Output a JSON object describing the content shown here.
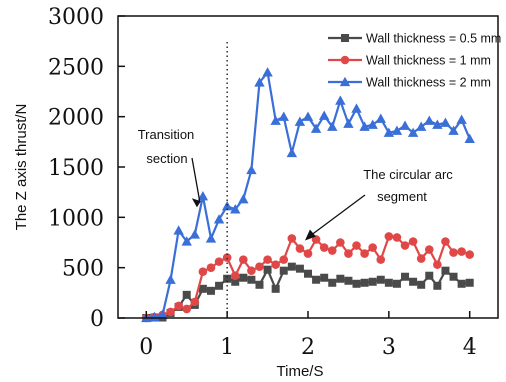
{
  "chart_data": {
    "type": "line",
    "xlabel": "Time/S",
    "ylabel": "The Z axis thrust/N",
    "xlim": [
      -0.35,
      4.35
    ],
    "ylim": [
      0,
      3000
    ],
    "x_ticks": [
      "0",
      "1",
      "2",
      "3",
      "4"
    ],
    "y_ticks": [
      "0",
      "500",
      "1000",
      "1500",
      "2000",
      "2500",
      "3000"
    ],
    "x_tick_values": [
      0,
      1,
      2,
      3,
      4
    ],
    "y_tick_values": [
      0,
      500,
      1000,
      1500,
      2000,
      2500,
      3000
    ],
    "vline_x": 1.0,
    "legend_position": "top-right",
    "annotations": [
      {
        "text_lines": [
          "Transition",
          "section"
        ],
        "points_to": [
          0.7,
          1180
        ]
      },
      {
        "text_lines": [
          "The circular arc",
          "segment"
        ],
        "points_to": [
          1.95,
          760
        ]
      }
    ],
    "series": [
      {
        "name": "Wall thickness = 0.5 mm",
        "color": "#4a4a4a",
        "marker": "square",
        "x": [
          0,
          0.1,
          0.2,
          0.3,
          0.4,
          0.5,
          0.6,
          0.7,
          0.8,
          0.9,
          1.0,
          1.1,
          1.2,
          1.3,
          1.4,
          1.5,
          1.6,
          1.7,
          1.8,
          1.9,
          2.0,
          2.1,
          2.2,
          2.3,
          2.4,
          2.5,
          2.6,
          2.7,
          2.8,
          2.9,
          3.0,
          3.1,
          3.2,
          3.3,
          3.4,
          3.5,
          3.6,
          3.7,
          3.8,
          3.9,
          4.0
        ],
        "y": [
          0,
          5,
          5,
          50,
          110,
          230,
          130,
          290,
          270,
          320,
          390,
          360,
          400,
          380,
          330,
          480,
          290,
          470,
          510,
          490,
          440,
          380,
          400,
          350,
          390,
          370,
          340,
          350,
          360,
          380,
          350,
          340,
          410,
          360,
          330,
          420,
          320,
          470,
          410,
          340,
          350
        ]
      },
      {
        "name": "Wall thickness = 1 mm",
        "color": "#e04848",
        "marker": "circle",
        "x": [
          0,
          0.1,
          0.2,
          0.3,
          0.4,
          0.5,
          0.6,
          0.7,
          0.8,
          0.9,
          1.0,
          1.1,
          1.2,
          1.3,
          1.4,
          1.5,
          1.6,
          1.7,
          1.8,
          1.9,
          2.0,
          2.1,
          2.2,
          2.3,
          2.4,
          2.5,
          2.6,
          2.7,
          2.8,
          2.9,
          3.0,
          3.1,
          3.2,
          3.3,
          3.4,
          3.5,
          3.6,
          3.7,
          3.8,
          3.9,
          4.0
        ],
        "y": [
          0,
          10,
          30,
          60,
          120,
          90,
          160,
          460,
          500,
          560,
          600,
          420,
          580,
          470,
          510,
          580,
          530,
          580,
          790,
          690,
          640,
          780,
          700,
          670,
          750,
          640,
          720,
          640,
          700,
          580,
          810,
          800,
          720,
          760,
          590,
          680,
          530,
          760,
          650,
          660,
          630
        ]
      },
      {
        "name": "Wall thickness = 2 mm",
        "color": "#3a6fd8",
        "marker": "triangle",
        "x": [
          0,
          0.1,
          0.2,
          0.3,
          0.4,
          0.5,
          0.6,
          0.7,
          0.8,
          0.9,
          1.0,
          1.1,
          1.2,
          1.3,
          1.4,
          1.5,
          1.6,
          1.7,
          1.8,
          1.9,
          2.0,
          2.1,
          2.2,
          2.3,
          2.4,
          2.5,
          2.6,
          2.7,
          2.8,
          2.9,
          3.0,
          3.1,
          3.2,
          3.3,
          3.4,
          3.5,
          3.6,
          3.7,
          3.8,
          3.9,
          4.0
        ],
        "y": [
          0,
          10,
          30,
          380,
          870,
          760,
          830,
          1210,
          790,
          980,
          1110,
          1080,
          1180,
          1470,
          2340,
          2440,
          1960,
          2000,
          1640,
          1950,
          2000,
          1880,
          2010,
          1900,
          2160,
          1930,
          2080,
          1900,
          1920,
          1980,
          1840,
          1860,
          1910,
          1840,
          1900,
          1960,
          1920,
          1940,
          1860,
          1970,
          1780
        ]
      }
    ]
  }
}
